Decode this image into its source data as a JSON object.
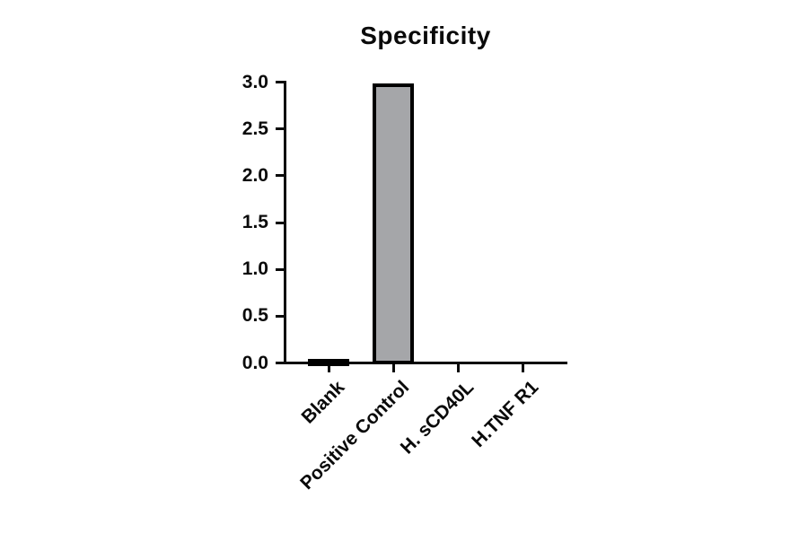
{
  "chart_data": {
    "type": "bar",
    "title": "Specificity",
    "categories": [
      "Blank",
      "Positive Control",
      "H. sCD40L",
      "H.TNF R1"
    ],
    "values": [
      0.03,
      2.97,
      0,
      0
    ],
    "xlabel": "",
    "ylabel": "",
    "ylim": [
      0,
      3.0
    ],
    "ytick_values": [
      0,
      0.5,
      1.0,
      1.5,
      2.0,
      2.5,
      3.0
    ],
    "ytick_labels": [
      "0.0",
      "0.5",
      "1.0",
      "1.5",
      "2.0",
      "2.5",
      "3.0"
    ],
    "grid": false,
    "legend": "none",
    "bar_fill_color": "#a5a6a9",
    "bar_border_color": "#000000",
    "axis_color": "#0a0a0a"
  }
}
